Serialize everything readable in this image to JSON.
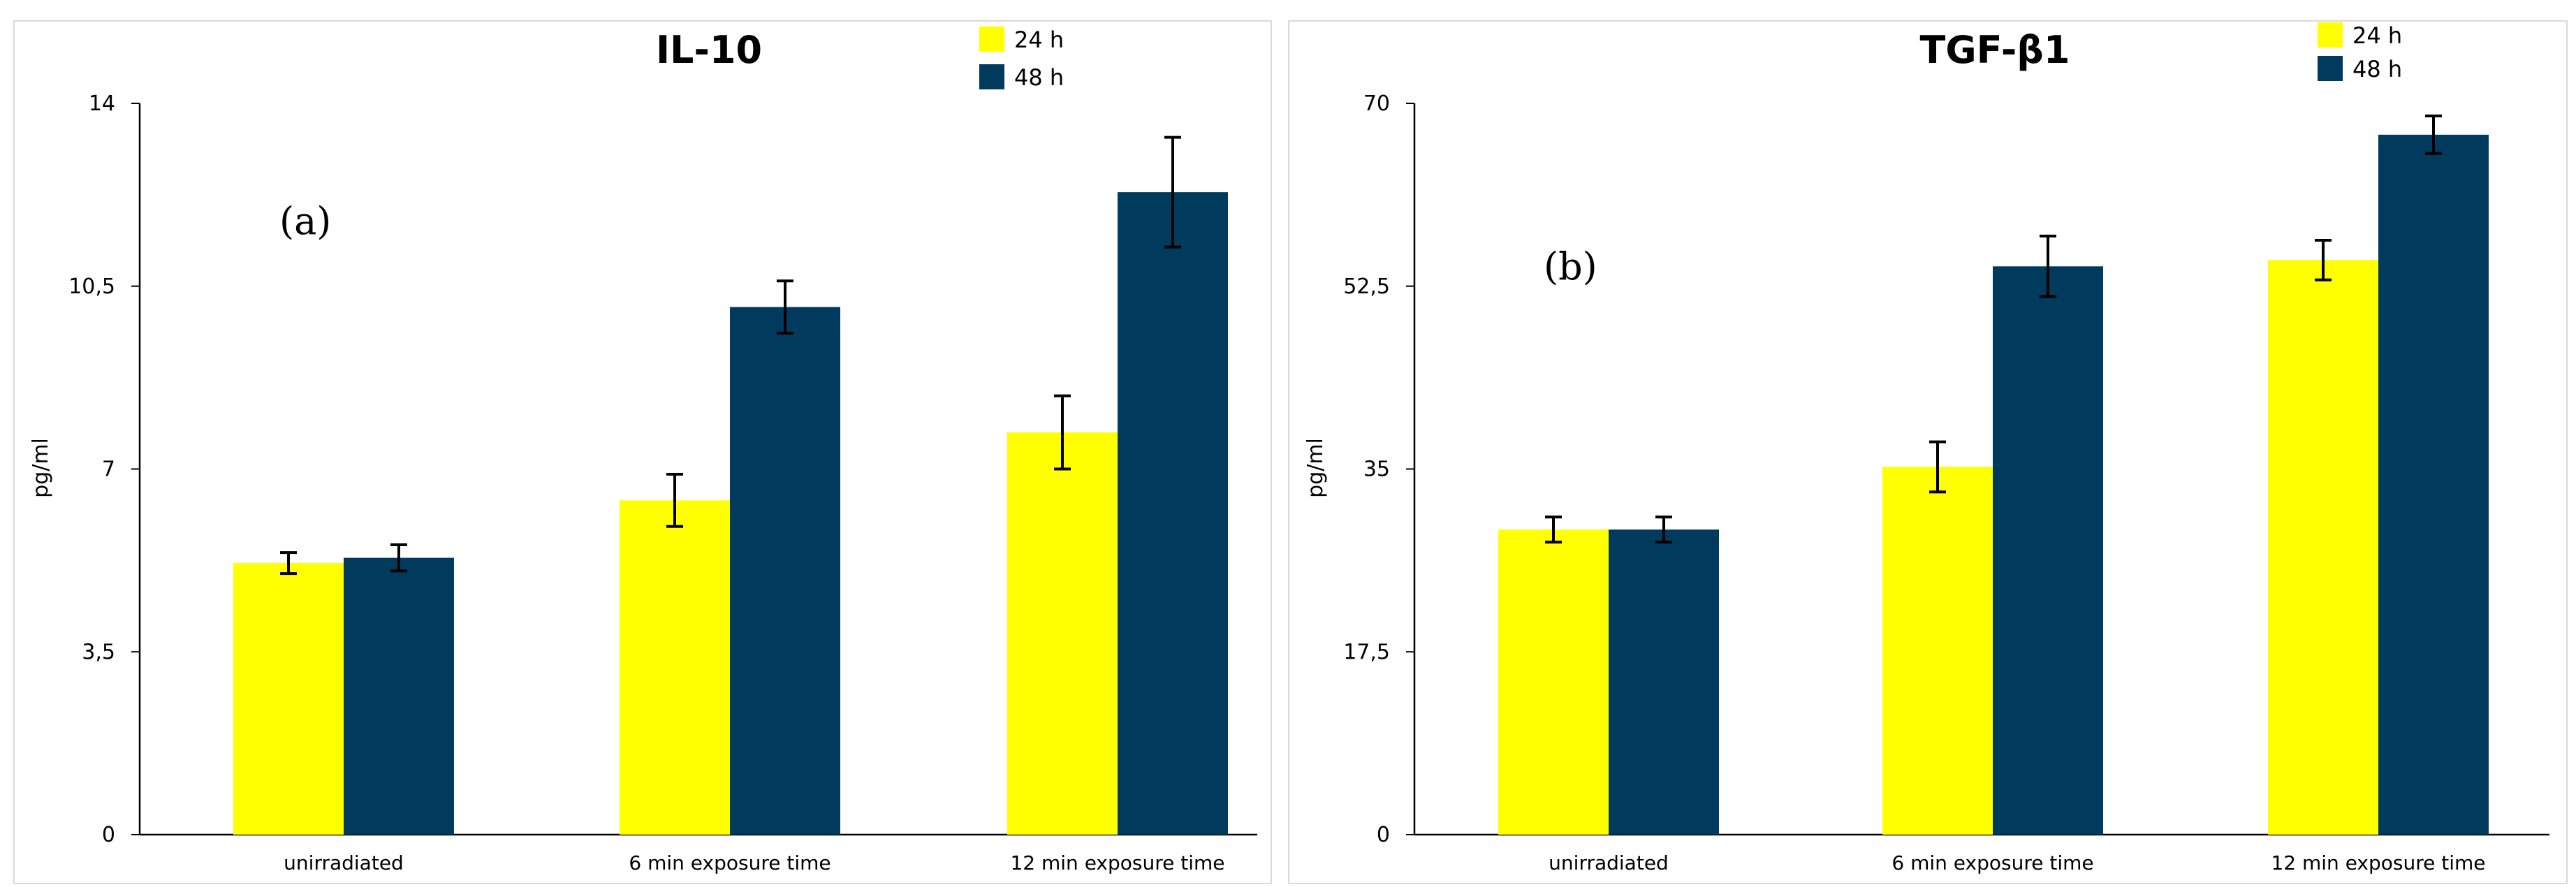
{
  "chart_data": [
    {
      "type": "bar",
      "title": "IL-10",
      "panel_label": "(a)",
      "xlabel": "",
      "ylabel": "pg/ml",
      "ylim": [
        0,
        14
      ],
      "yticks": [
        0,
        3.5,
        7,
        10.5,
        14
      ],
      "ytick_labels": [
        "0",
        "3,5",
        "7",
        "10,5",
        "14"
      ],
      "categories": [
        "unirradiated",
        "6 min exposure time",
        "12 min exposure time"
      ],
      "series": [
        {
          "name": "24 h",
          "color": "#ffff00",
          "values": [
            5.2,
            6.4,
            7.7
          ],
          "errors": [
            0.2,
            0.5,
            0.7
          ]
        },
        {
          "name": "48 h",
          "color": "#003a5c",
          "values": [
            5.3,
            10.1,
            12.3
          ],
          "errors": [
            0.25,
            0.5,
            1.05
          ]
        }
      ],
      "legend": "top-right"
    },
    {
      "type": "bar",
      "title": "TGF-β1",
      "panel_label": "(b)",
      "xlabel": "",
      "ylabel": "pg/ml",
      "ylim": [
        0,
        70
      ],
      "yticks": [
        0,
        17.5,
        35,
        52.5,
        70
      ],
      "ytick_labels": [
        "0",
        "17,5",
        "35",
        "52,5",
        "70"
      ],
      "categories": [
        "unirradiated",
        "6 min exposure time",
        "12 min exposure time"
      ],
      "series": [
        {
          "name": "24 h",
          "color": "#ffff00",
          "values": [
            29.2,
            35.2,
            55.0
          ],
          "errors": [
            1.2,
            2.4,
            1.9
          ]
        },
        {
          "name": "48 h",
          "color": "#003a5c",
          "values": [
            29.2,
            54.4,
            67.0
          ],
          "errors": [
            1.2,
            2.9,
            1.8
          ]
        }
      ],
      "legend": "top-right"
    }
  ]
}
